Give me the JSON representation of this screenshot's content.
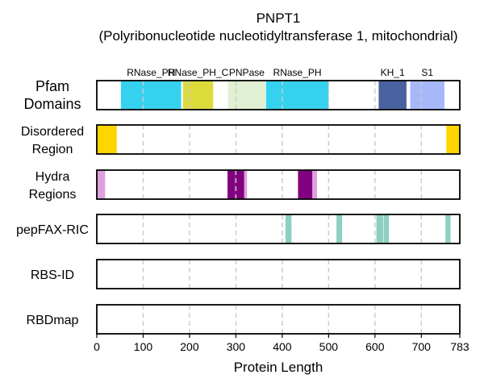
{
  "chart_data": {
    "type": "bar",
    "title_line1": "PNPT1",
    "title_line2": "(Polyribonucleotide nucleotidyltransferase 1, mitochondrial)",
    "xlabel": "Protein Length",
    "xlim": [
      0,
      783
    ],
    "xticks": [
      {
        "value": 0,
        "label": "0"
      },
      {
        "value": 100,
        "label": "100"
      },
      {
        "value": 200,
        "label": "200"
      },
      {
        "value": 300,
        "label": "300"
      },
      {
        "value": 400,
        "label": "400"
      },
      {
        "value": 500,
        "label": "500"
      },
      {
        "value": 600,
        "label": "600"
      },
      {
        "value": 700,
        "label": "700"
      },
      {
        "value": 783,
        "label": "783"
      }
    ],
    "grid": "vertical dashed at 100-residue ticks",
    "rows": [
      {
        "name": "Pfam Domains",
        "label_lines": [
          "Pfam",
          "Domains"
        ],
        "segments": [
          {
            "start": 52,
            "end": 182,
            "color": "#36d1ee",
            "label": "RNase_PH"
          },
          {
            "start": 186,
            "end": 251,
            "color": "#dcdb3c",
            "label": "RNase_PH_C"
          },
          {
            "start": 283,
            "end": 364,
            "color": "#e1efd2",
            "label": "PNPase"
          },
          {
            "start": 365,
            "end": 500,
            "color": "#36d1ee",
            "label": "RNase_PH"
          },
          {
            "start": 608,
            "end": 668,
            "color": "#4a62a0",
            "label": "KH_1"
          },
          {
            "start": 676,
            "end": 750,
            "color": "#a7b8fa",
            "label": "S1"
          }
        ]
      },
      {
        "name": "Disordered Region",
        "label_lines": [
          "Disordered",
          "Region"
        ],
        "segments": [
          {
            "start": 0,
            "end": 43,
            "color": "#ffd500"
          },
          {
            "start": 754,
            "end": 783,
            "color": "#ffd500"
          }
        ]
      },
      {
        "name": "Hydra Regions",
        "label_lines": [
          "Hydra",
          "Regions"
        ],
        "segments": [
          {
            "start": 0,
            "end": 18,
            "color": "#dda0dd"
          },
          {
            "start": 282,
            "end": 296,
            "color": "#800080"
          },
          {
            "start": 296,
            "end": 318,
            "color": "#800080"
          },
          {
            "start": 318,
            "end": 324,
            "color": "#dda0dd"
          },
          {
            "start": 434,
            "end": 465,
            "color": "#800080"
          },
          {
            "start": 465,
            "end": 475,
            "color": "#dda0dd"
          }
        ]
      },
      {
        "name": "pepFAX-RIC",
        "label_lines": [
          "pepFAX-RIC"
        ],
        "segments": [
          {
            "start": 407,
            "end": 420,
            "color": "#8ecfc3"
          },
          {
            "start": 517,
            "end": 529,
            "color": "#8ecfc3"
          },
          {
            "start": 603,
            "end": 618,
            "color": "#8ecfc3"
          },
          {
            "start": 619,
            "end": 630,
            "color": "#8ecfc3"
          },
          {
            "start": 752,
            "end": 763,
            "color": "#8ecfc3"
          }
        ]
      },
      {
        "name": "RBS-ID",
        "label_lines": [
          "RBS-ID"
        ],
        "segments": []
      },
      {
        "name": "RBDmap",
        "label_lines": [
          "RBDmap"
        ],
        "segments": []
      }
    ]
  }
}
